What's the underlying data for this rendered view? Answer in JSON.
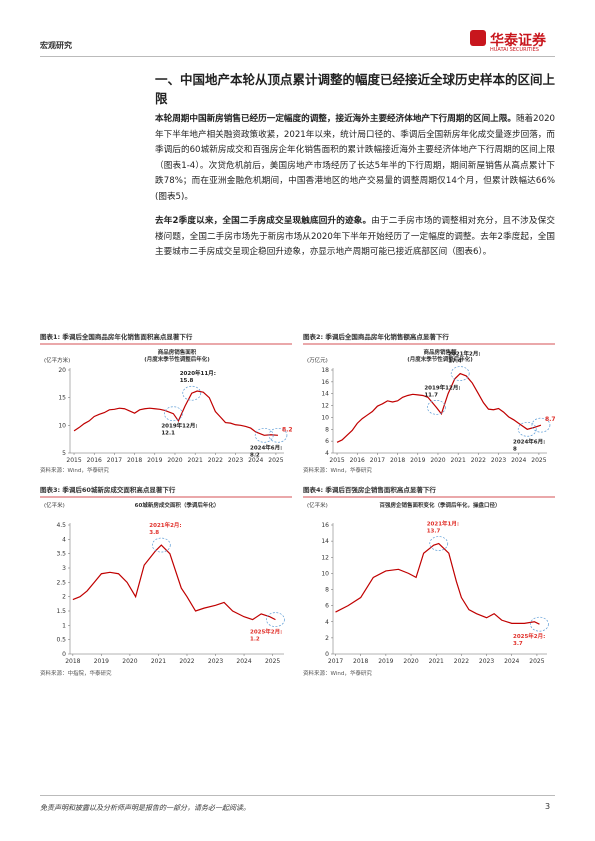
{
  "header": {
    "section": "宏观研究",
    "logo": "华泰证券",
    "logo_en": "HUATAI SECURITIES"
  },
  "section_title": "一、中国地产本轮从顶点累计调整的幅度已经接近全球历史样本的区间上限",
  "paragraphs": [
    {
      "bold": "本轮周期中国新房销售已经历一定幅度的调整，接近海外主要经济体地产下行周期的区间上限。",
      "text": "随着2020年下半年地产相关融资政策收紧，2021年以来，统计局口径的、季调后全国新房年化成交量逐步回落，而季调后的60城新房成交和百强房企年化销售面积的累计跌幅接近海外主要经济体地产下行周期的区间上限（图表1-4）。次贷危机前后，美国房地产市场经历了长达5年半的下行周期，期间新屋销售从高点累计下跌78%；而在亚洲金融危机期间，中国香港地区的地产交易量的调整周期仅14个月，但累计跌幅达66%(图表5)。"
    },
    {
      "bold": "去年2季度以来，全国二手房成交呈现触底回升的迹象。",
      "text": "由于二手房市场的调整相对充分，且不涉及保交楼问题，全国二手房市场先于新房市场从2020年下半年开始经历了一定幅度的调整。去年2季度起，全国主要城市二手房成交呈现企稳回升迹象，亦显示地产周期可能已接近底部区间（图表6）。"
    }
  ],
  "chart_data": [
    {
      "type": "line",
      "caption": "图表1: 季调后全国商品房年化销售面积高点显著下行",
      "title": "商品房销售面积",
      "subtitle": "(月度末季节性调整后年化)",
      "y_label": "(亿平方米)",
      "source": "资料来源：Wind，华泰研究",
      "color": "#c00000",
      "x": [
        2015,
        2015.25,
        2015.5,
        2015.75,
        2016,
        2016.25,
        2016.5,
        2016.75,
        2017,
        2017.25,
        2017.5,
        2017.75,
        2018,
        2018.25,
        2018.5,
        2018.75,
        2019,
        2019.25,
        2019.5,
        2019.92,
        2020.17,
        2020.5,
        2020.83,
        2021.1,
        2021.4,
        2021.7,
        2022,
        2022.25,
        2022.5,
        2022.75,
        2023,
        2023.25,
        2023.5,
        2023.75,
        2024,
        2024.42,
        2024.75,
        2025.1
      ],
      "values": [
        9,
        9.6,
        10.3,
        10.8,
        11.6,
        12,
        12.3,
        12.8,
        12.9,
        13.1,
        13,
        12.6,
        12.2,
        12.8,
        13,
        13.1,
        13,
        12.9,
        12.7,
        12.1,
        10.8,
        13.5,
        15.8,
        16.2,
        16,
        15,
        12.5,
        11.5,
        10.5,
        10.4,
        10.1,
        10,
        9.8,
        9.5,
        8.8,
        8.2,
        8.3,
        8.2
      ],
      "xlim": [
        2014.8,
        2025.4
      ],
      "xticks": [
        2015,
        2016,
        2017,
        2018,
        2019,
        2020,
        2021,
        2022,
        2023,
        2024,
        2025
      ],
      "ylim": [
        5,
        20
      ],
      "yticks": [
        5,
        10,
        15,
        20
      ],
      "annotations": [
        {
          "label": "2020年11月:",
          "value": 15.8,
          "x": 2020.83,
          "color": "#222222"
        },
        {
          "label": "2019年12月:",
          "value": 12.1,
          "x": 2019.92,
          "color": "#222222"
        },
        {
          "label": "2024年6月:",
          "value": 8.2,
          "x": 2024.42,
          "color": "#222222"
        },
        {
          "value": 8.2,
          "x": 2025.1,
          "color": "#e0302a"
        }
      ]
    },
    {
      "type": "line",
      "caption": "图表2: 季调后全国商品房年化销售额高点显著下行",
      "title": "商品房销售额",
      "subtitle": "(月度末季节性调整后年化)",
      "y_label": "(万亿元)",
      "source": "资料来源：Wind，华泰研究",
      "color": "#c00000",
      "x": [
        2015,
        2015.25,
        2015.5,
        2015.75,
        2016,
        2016.25,
        2016.5,
        2016.75,
        2017,
        2017.25,
        2017.5,
        2017.75,
        2018,
        2018.25,
        2018.5,
        2018.75,
        2019,
        2019.25,
        2019.5,
        2019.92,
        2020.17,
        2020.5,
        2020.83,
        2021.1,
        2021.4,
        2021.7,
        2022,
        2022.25,
        2022.5,
        2022.75,
        2023,
        2023.25,
        2023.5,
        2023.75,
        2024,
        2024.42,
        2024.75,
        2025.1
      ],
      "values": [
        5.8,
        6.2,
        7,
        7.8,
        9,
        9.8,
        10.4,
        11,
        11.9,
        12.3,
        12.8,
        12.6,
        12.8,
        13.4,
        13.7,
        13.9,
        13.8,
        13.7,
        13.4,
        11.7,
        10.6,
        14,
        16.5,
        17.4,
        17,
        15.8,
        14,
        12.5,
        11.4,
        11.3,
        11.5,
        10.9,
        10.1,
        9.6,
        9,
        8,
        8.3,
        8.7
      ],
      "xlim": [
        2014.8,
        2025.4
      ],
      "xticks": [
        2015,
        2016,
        2017,
        2018,
        2019,
        2020,
        2021,
        2022,
        2023,
        2024,
        2025
      ],
      "ylim": [
        4,
        18
      ],
      "yticks": [
        4,
        6,
        8,
        10,
        12,
        14,
        16,
        18
      ],
      "annotations": [
        {
          "label": "2021年2月:",
          "value": 17.4,
          "x": 2021.1,
          "color": "#222222"
        },
        {
          "label": "2019年12月:",
          "value": 11.7,
          "x": 2019.92,
          "color": "#222222"
        },
        {
          "label": "2024年6月:",
          "value": 8,
          "x": 2024.42,
          "color": "#222222"
        },
        {
          "value": 8.7,
          "x": 2025.1,
          "color": "#e0302a"
        }
      ]
    },
    {
      "type": "line",
      "caption": "图表3: 季调后60城新房成交面积高点显著下行",
      "title": "60城新房成交面积（季调后年化）",
      "y_label": "(亿平米)",
      "source": "资料来源：中指院，华泰研究",
      "color": "#c00000",
      "x": [
        2018,
        2018.25,
        2018.5,
        2018.75,
        2019,
        2019.3,
        2019.6,
        2019.9,
        2020.2,
        2020.5,
        2020.9,
        2021.1,
        2021.4,
        2021.8,
        2022,
        2022.3,
        2022.6,
        2023,
        2023.3,
        2023.6,
        2024,
        2024.3,
        2024.6,
        2024.9,
        2025.1
      ],
      "values": [
        1.9,
        2,
        2.2,
        2.5,
        2.8,
        2.85,
        2.8,
        2.5,
        2,
        3.1,
        3.6,
        3.8,
        3.5,
        2.3,
        2,
        1.5,
        1.6,
        1.7,
        1.8,
        1.5,
        1.3,
        1.2,
        1.4,
        1.3,
        1.2
      ],
      "xlim": [
        2017.9,
        2025.4
      ],
      "xticks": [
        2018,
        2019,
        2020,
        2021,
        2022,
        2023,
        2024,
        2025
      ],
      "ylim": [
        0,
        4.5
      ],
      "yticks": [
        0,
        0.5,
        1,
        1.5,
        2,
        2.5,
        3,
        3.5,
        4,
        4.5
      ],
      "annotations": [
        {
          "label": "2021年2月:",
          "value": 3.8,
          "x": 2021.1,
          "color": "#e0302a"
        },
        {
          "label": "2025年2月:",
          "value": 1.2,
          "x": 2025.1,
          "color": "#e0302a"
        }
      ]
    },
    {
      "type": "line",
      "caption": "图表4: 季调后百强房企销售面积高点显著下行",
      "title": "百强房企销售面积变化（季调后年化，操盘口径）",
      "y_label": "(亿平米)",
      "source": "资料来源：Wind，华泰研究",
      "color": "#c00000",
      "x": [
        2017,
        2017.5,
        2018,
        2018.5,
        2019,
        2019.5,
        2019.9,
        2020.2,
        2020.5,
        2020.9,
        2021.1,
        2021.5,
        2021.8,
        2022,
        2022.3,
        2022.6,
        2023,
        2023.3,
        2023.6,
        2024,
        2024.5,
        2024.9,
        2025.1
      ],
      "values": [
        5.2,
        6,
        7,
        9.5,
        10.3,
        10.5,
        10,
        9.5,
        12.5,
        13.5,
        13.7,
        12.5,
        9,
        7,
        5.5,
        5,
        4.5,
        5,
        4.2,
        3.8,
        3.8,
        4,
        3.7
      ],
      "xlim": [
        2016.9,
        2025.4
      ],
      "xticks": [
        2017,
        2018,
        2019,
        2020,
        2021,
        2022,
        2023,
        2024,
        2025
      ],
      "ylim": [
        0,
        16
      ],
      "yticks": [
        0,
        2,
        4,
        6,
        8,
        10,
        12,
        14,
        16
      ],
      "annotations": [
        {
          "label": "2021年1月:",
          "value": 13.7,
          "x": 2021.1,
          "color": "#e0302a"
        },
        {
          "label": "2025年2月:",
          "value": 3.7,
          "x": 2025.1,
          "color": "#e0302a"
        }
      ]
    }
  ],
  "footer": {
    "disclaimer": "免责声明和披露以及分析师声明是报告的一部分，请务必一起阅读。",
    "page": "3"
  }
}
